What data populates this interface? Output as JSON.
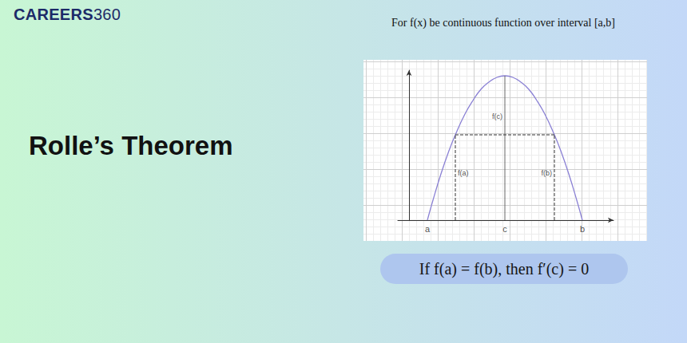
{
  "header": {
    "brand": [
      "CAREERS",
      "360"
    ]
  },
  "title": "Rolle’s Theorem",
  "caption": "For f(x) be continuous function over interval [a,b]",
  "formula": "If f(a) = f(b), then f′(c) = 0",
  "chart_data": {
    "type": "line",
    "x": [
      2.3,
      3,
      4,
      5,
      5.8,
      7,
      8,
      9,
      10,
      11,
      12,
      13,
      14,
      15,
      16,
      17,
      18.2,
      19,
      20,
      21,
      21.7
    ],
    "values": [
      0,
      2.5,
      5.8,
      8.7,
      10.7,
      13.3,
      15.0,
      16.4,
      17.3,
      17.9,
      18.1,
      17.9,
      17.3,
      16.4,
      15.0,
      13.3,
      10.7,
      8.7,
      5.8,
      2.5,
      0
    ],
    "color": "#8a80d4",
    "xlim": [
      -1.4,
      25.6
    ],
    "ylim": [
      0,
      18.8
    ],
    "tick_labels": false,
    "grid": true,
    "points": [
      {
        "label": "a",
        "x": 2.3
      },
      {
        "label": "c",
        "x": 12
      },
      {
        "label": "b",
        "x": 21.7
      }
    ],
    "guides": [
      {
        "label": "f(a)",
        "x": 5.8,
        "y": 10.7,
        "line_style": "dashed"
      },
      {
        "label": "f(c)",
        "x": 12,
        "y": 18.1,
        "line_style": "solid"
      },
      {
        "label": "f(b)",
        "x": 18.2,
        "y": 10.7,
        "line_style": "dashed"
      }
    ]
  }
}
